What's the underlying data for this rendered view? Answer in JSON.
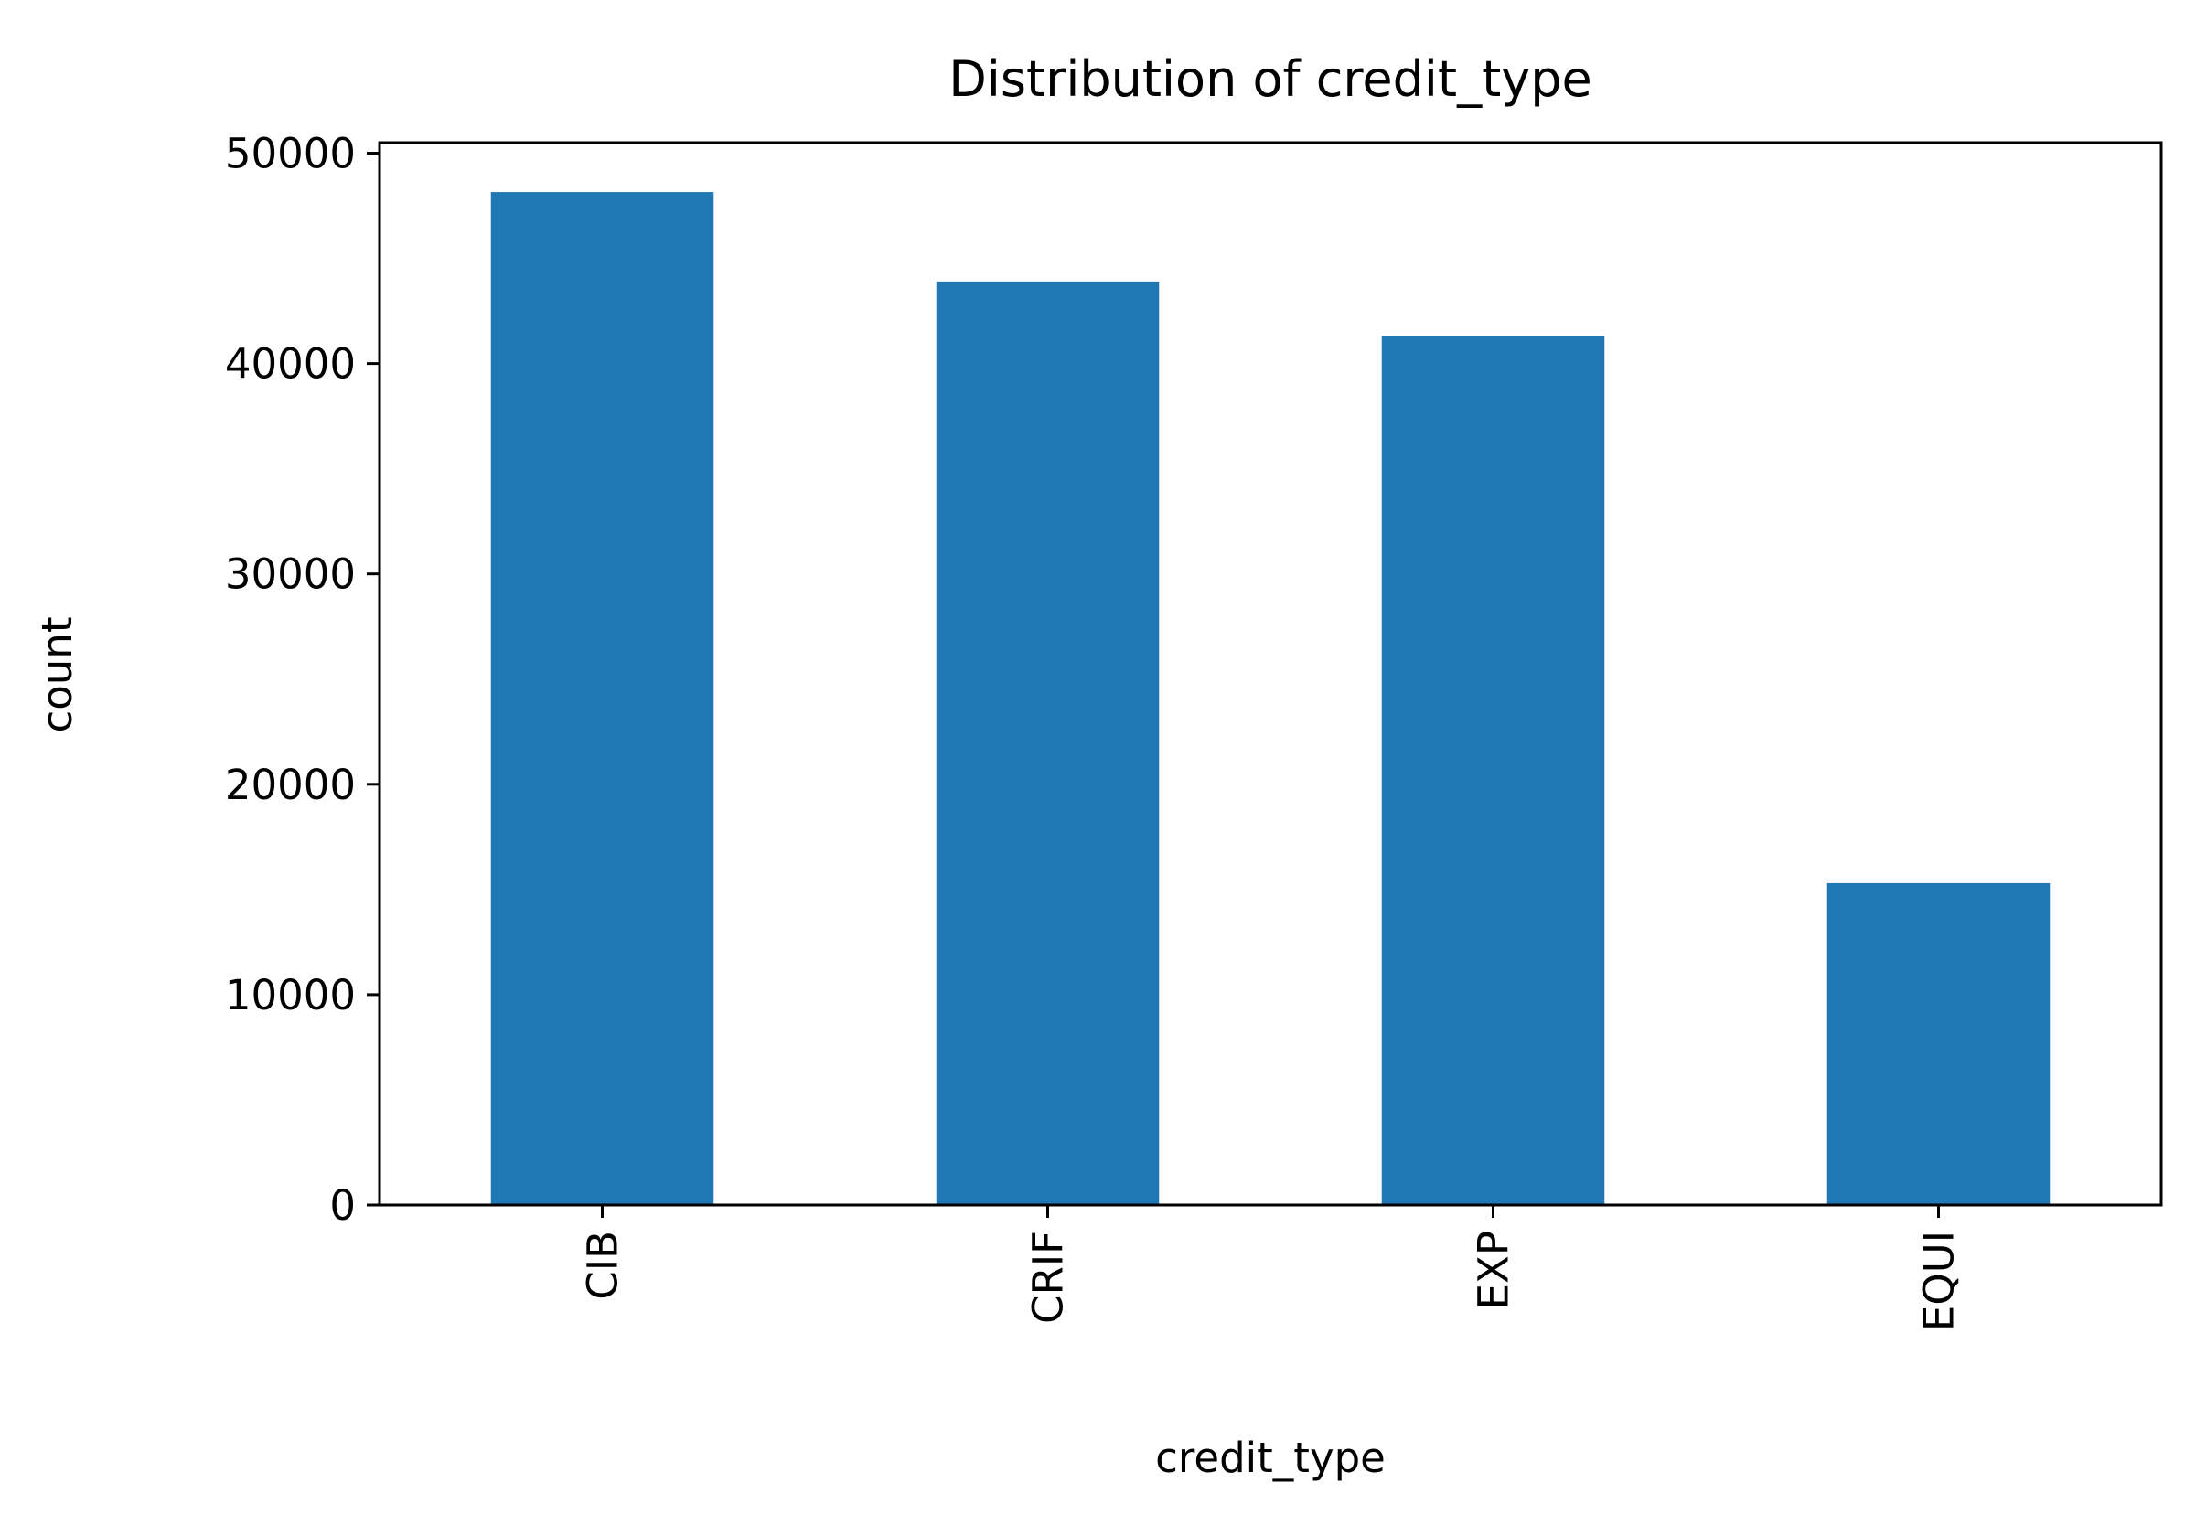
{
  "chart_data": {
    "type": "bar",
    "title": "Distribution of credit_type",
    "xlabel": "credit_type",
    "ylabel": "count",
    "categories": [
      "CIB",
      "CRIF",
      "EXP",
      "EQUI"
    ],
    "values": [
      48150,
      43900,
      41300,
      15300
    ],
    "ylim": [
      0,
      50500
    ],
    "yticks": [
      0,
      10000,
      20000,
      30000,
      40000,
      50000
    ],
    "ytick_labels": [
      "0",
      "10000",
      "20000",
      "30000",
      "40000",
      "50000"
    ],
    "grid": false,
    "legend": "none",
    "bar_color": "#1f77b4"
  }
}
